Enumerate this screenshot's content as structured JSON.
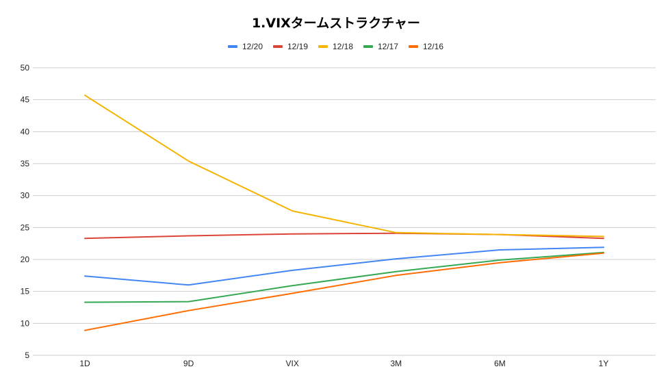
{
  "chart_data": {
    "type": "line",
    "title": "1.VIXタームストラクチャー",
    "xlabel": "",
    "ylabel": "",
    "categories": [
      "1D",
      "9D",
      "VIX",
      "3M",
      "6M",
      "1Y"
    ],
    "ylim": [
      5,
      50
    ],
    "yticks": [
      5,
      10,
      15,
      20,
      25,
      30,
      35,
      40,
      45,
      50
    ],
    "grid": true,
    "legend_position": "top",
    "series": [
      {
        "name": "12/20",
        "color": "#4285f4",
        "values": [
          17.4,
          16.0,
          18.3,
          20.1,
          21.5,
          21.9
        ]
      },
      {
        "name": "12/19",
        "color": "#db4437",
        "values": [
          23.3,
          23.7,
          24.0,
          24.1,
          23.9,
          23.3
        ]
      },
      {
        "name": "12/18",
        "color": "#f4b400",
        "values": [
          45.7,
          35.4,
          27.6,
          24.2,
          23.9,
          23.6
        ]
      },
      {
        "name": "12/17",
        "color": "#34a853",
        "values": [
          13.3,
          13.4,
          15.9,
          18.1,
          19.9,
          21.1
        ]
      },
      {
        "name": "12/16",
        "color": "#ff6d01",
        "values": [
          8.9,
          12.0,
          14.7,
          17.5,
          19.5,
          21.0
        ]
      }
    ]
  }
}
